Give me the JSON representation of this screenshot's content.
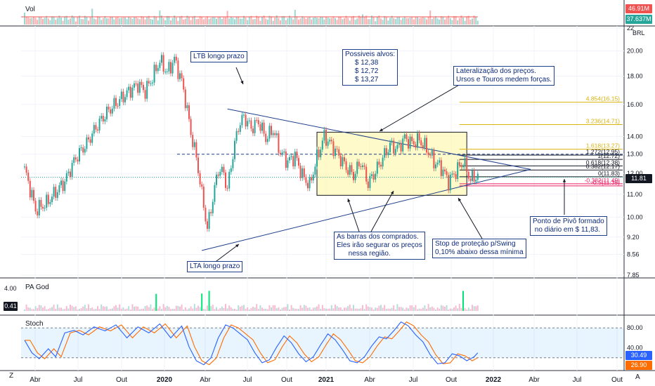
{
  "panes": {
    "volume": {
      "title": "Vol",
      "last_value": "46.91M",
      "ma_value": "37.637M",
      "last_color": "#ef5350",
      "ma_color": "#26a69a"
    },
    "indicator": {
      "title": "PA God",
      "axis_top": "4.00",
      "value": "0.41"
    },
    "stoch": {
      "title": "Stoch",
      "value_k": "30.49",
      "value_d": "26.90",
      "k_color": "#2962ff",
      "d_color": "#ff6d00"
    }
  },
  "currency": "BRL",
  "last_price": "11.81",
  "footer": {
    "left_letter": "Z",
    "right_letter": "A"
  },
  "annotations": {
    "ltb": "LTB longo prazo",
    "targets": "Possiveis alvos:\n     $ 12,38\n     $ 12,72\n     $ 13,27",
    "lateral": "Lateralização dos preços.\nUrsos e Touros medem forças.",
    "buyers": "As barras dos comprados.\nEles irão segurar os preços\n      nessa região.",
    "stop": "Stop de proteção p/Swing\n0,10% abaixo dessa mínima",
    "pivot": "Ponto de Pivô formado\n no diário em $ 11,83.",
    "lta": "LTA longo prazo"
  },
  "chart_data": {
    "type": "candlestick",
    "title": "",
    "y_axis": {
      "ticks": [
        "22",
        "20.00",
        "18.00",
        "16.00",
        "14.00",
        "13.00",
        "12.00",
        "11.00",
        "10.00",
        "9.20",
        "8.56",
        "7.85"
      ],
      "scale": "log",
      "range": [
        7.85,
        22
      ]
    },
    "x_axis": {
      "ticks": [
        "Abr",
        "Jul",
        "Out",
        "2020",
        "Abr",
        "Jul",
        "Out",
        "2021",
        "Abr",
        "Jul",
        "Out",
        "2022",
        "Abr",
        "Jul",
        "Out"
      ]
    },
    "fib_levels": [
      {
        "label": "4.854(16.15)",
        "value": 16.15
      },
      {
        "label": "3.236(14.71)",
        "value": 14.71
      },
      {
        "label": "1.618(13.27)",
        "value": 13.27
      },
      {
        "label": "1.272(12.95)",
        "value": 12.95
      },
      {
        "label": "1(12.72)",
        "value": 12.72
      },
      {
        "label": "0.618(12.38)",
        "value": 12.38
      },
      {
        "label": "0.382(12.17)",
        "value": 12.17
      },
      {
        "label": "0(11.83)",
        "value": 11.83
      },
      {
        "label": "-0.382(11.49)",
        "value": 11.49
      },
      {
        "label": "-0.5(11.39)",
        "value": 11.39
      }
    ],
    "price_path": [
      {
        "i": 0,
        "v": 12.2
      },
      {
        "i": 6,
        "v": 10.3
      },
      {
        "i": 12,
        "v": 10.6
      },
      {
        "i": 18,
        "v": 11.2
      },
      {
        "i": 22,
        "v": 11.6
      },
      {
        "i": 28,
        "v": 12.8
      },
      {
        "i": 34,
        "v": 13.6
      },
      {
        "i": 40,
        "v": 14.7
      },
      {
        "i": 46,
        "v": 15.6
      },
      {
        "i": 52,
        "v": 16.3
      },
      {
        "i": 58,
        "v": 17.0
      },
      {
        "i": 62,
        "v": 17.4
      },
      {
        "i": 66,
        "v": 16.9
      },
      {
        "i": 70,
        "v": 17.9
      },
      {
        "i": 74,
        "v": 19.2
      },
      {
        "i": 78,
        "v": 18.3
      },
      {
        "i": 82,
        "v": 19.3
      },
      {
        "i": 86,
        "v": 17.6
      },
      {
        "i": 88,
        "v": 16.3
      },
      {
        "i": 91,
        "v": 14.2
      },
      {
        "i": 94,
        "v": 12.8
      },
      {
        "i": 97,
        "v": 11.0
      },
      {
        "i": 100,
        "v": 9.5
      },
      {
        "i": 103,
        "v": 10.8
      },
      {
        "i": 106,
        "v": 12.2
      },
      {
        "i": 109,
        "v": 12.0
      },
      {
        "i": 111,
        "v": 11.2
      },
      {
        "i": 114,
        "v": 13.0
      },
      {
        "i": 117,
        "v": 14.6
      },
      {
        "i": 120,
        "v": 15.2
      },
      {
        "i": 124,
        "v": 14.5
      },
      {
        "i": 128,
        "v": 14.9
      },
      {
        "i": 132,
        "v": 13.9
      },
      {
        "i": 136,
        "v": 14.4
      },
      {
        "i": 140,
        "v": 13.1
      },
      {
        "i": 144,
        "v": 12.6
      },
      {
        "i": 148,
        "v": 12.9
      },
      {
        "i": 152,
        "v": 11.9
      },
      {
        "i": 156,
        "v": 11.4
      },
      {
        "i": 160,
        "v": 12.8
      },
      {
        "i": 164,
        "v": 14.0
      },
      {
        "i": 168,
        "v": 13.5
      },
      {
        "i": 172,
        "v": 12.9
      },
      {
        "i": 176,
        "v": 12.3
      },
      {
        "i": 180,
        "v": 11.9
      },
      {
        "i": 184,
        "v": 12.6
      },
      {
        "i": 188,
        "v": 11.5
      },
      {
        "i": 192,
        "v": 12.1
      },
      {
        "i": 196,
        "v": 12.8
      },
      {
        "i": 200,
        "v": 13.5
      },
      {
        "i": 204,
        "v": 13.3
      },
      {
        "i": 208,
        "v": 13.9
      },
      {
        "i": 212,
        "v": 13.6
      },
      {
        "i": 216,
        "v": 13.8
      },
      {
        "i": 220,
        "v": 13.3
      },
      {
        "i": 224,
        "v": 12.6
      },
      {
        "i": 228,
        "v": 12.3
      },
      {
        "i": 232,
        "v": 11.6
      },
      {
        "i": 236,
        "v": 12.1
      },
      {
        "i": 240,
        "v": 12.6
      },
      {
        "i": 244,
        "v": 11.7
      },
      {
        "i": 248,
        "v": 11.9
      }
    ],
    "stoch_k_path": [
      {
        "i": 0,
        "v": 55
      },
      {
        "i": 4,
        "v": 30
      },
      {
        "i": 8,
        "v": 18
      },
      {
        "i": 13,
        "v": 38
      },
      {
        "i": 17,
        "v": 22
      },
      {
        "i": 22,
        "v": 70
      },
      {
        "i": 27,
        "v": 75
      },
      {
        "i": 32,
        "v": 66
      },
      {
        "i": 38,
        "v": 82
      },
      {
        "i": 44,
        "v": 74
      },
      {
        "i": 50,
        "v": 86
      },
      {
        "i": 56,
        "v": 60
      },
      {
        "i": 62,
        "v": 82
      },
      {
        "i": 68,
        "v": 70
      },
      {
        "i": 74,
        "v": 88
      },
      {
        "i": 80,
        "v": 60
      },
      {
        "i": 86,
        "v": 84
      },
      {
        "i": 90,
        "v": 42
      },
      {
        "i": 94,
        "v": 14
      },
      {
        "i": 98,
        "v": 6
      },
      {
        "i": 102,
        "v": 20
      },
      {
        "i": 106,
        "v": 60
      },
      {
        "i": 110,
        "v": 86
      },
      {
        "i": 114,
        "v": 80
      },
      {
        "i": 118,
        "v": 68
      },
      {
        "i": 122,
        "v": 56
      },
      {
        "i": 126,
        "v": 30
      },
      {
        "i": 130,
        "v": 10
      },
      {
        "i": 134,
        "v": 16
      },
      {
        "i": 138,
        "v": 42
      },
      {
        "i": 142,
        "v": 64
      },
      {
        "i": 146,
        "v": 50
      },
      {
        "i": 150,
        "v": 28
      },
      {
        "i": 154,
        "v": 12
      },
      {
        "i": 158,
        "v": 22
      },
      {
        "i": 162,
        "v": 46
      },
      {
        "i": 166,
        "v": 68
      },
      {
        "i": 170,
        "v": 56
      },
      {
        "i": 174,
        "v": 36
      },
      {
        "i": 178,
        "v": 14
      },
      {
        "i": 182,
        "v": 10
      },
      {
        "i": 186,
        "v": 22
      },
      {
        "i": 190,
        "v": 44
      },
      {
        "i": 194,
        "v": 62
      },
      {
        "i": 198,
        "v": 58
      },
      {
        "i": 202,
        "v": 74
      },
      {
        "i": 206,
        "v": 92
      },
      {
        "i": 210,
        "v": 84
      },
      {
        "i": 214,
        "v": 66
      },
      {
        "i": 218,
        "v": 52
      },
      {
        "i": 222,
        "v": 26
      },
      {
        "i": 226,
        "v": 8
      },
      {
        "i": 230,
        "v": 10
      },
      {
        "i": 234,
        "v": 28
      },
      {
        "i": 238,
        "v": 24
      },
      {
        "i": 242,
        "v": 14
      },
      {
        "i": 246,
        "v": 22
      },
      {
        "i": 248,
        "v": 30
      }
    ]
  }
}
